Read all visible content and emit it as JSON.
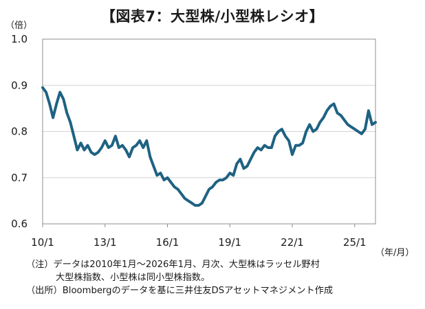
{
  "chart_data": {
    "type": "line",
    "title": "【図表7：大型株/小型株レシオ】",
    "ylabel": "（倍）",
    "xlabel": "（年/月）",
    "ylim": [
      0.6,
      1.0
    ],
    "yticks": [
      "1.0",
      "0.9",
      "0.8",
      "0.7",
      "0.6"
    ],
    "ytick_values": [
      1.0,
      0.9,
      0.8,
      0.7,
      0.6
    ],
    "xticks": [
      "10/1",
      "13/1",
      "16/1",
      "19/1",
      "22/1",
      "25/1"
    ],
    "xtick_values": [
      0,
      36,
      72,
      108,
      144,
      180
    ],
    "x_range": [
      0,
      192
    ],
    "grid": true,
    "line_color": "#1f6282",
    "series": [
      {
        "x": [
          0,
          2,
          4,
          6,
          8,
          10,
          12,
          14,
          16,
          18,
          20,
          22,
          24,
          26,
          28,
          30,
          32,
          34,
          36,
          38,
          40,
          42,
          44,
          46,
          48,
          50,
          52,
          54,
          56,
          58,
          60,
          62,
          64,
          66,
          68,
          70,
          72,
          74,
          76,
          78,
          80,
          82,
          84,
          86,
          88,
          90,
          92,
          94,
          96,
          98,
          100,
          102,
          104,
          106,
          108,
          110,
          112,
          114,
          116,
          118,
          120,
          122,
          124,
          126,
          128,
          130,
          132,
          134,
          136,
          138,
          140,
          142,
          144,
          146,
          148,
          150,
          152,
          154,
          156,
          158,
          160,
          162,
          164,
          166,
          168,
          170,
          172,
          174,
          176,
          178,
          180,
          182,
          184,
          186,
          188,
          190,
          192
        ],
        "values": [
          0.895,
          0.885,
          0.86,
          0.83,
          0.86,
          0.885,
          0.87,
          0.84,
          0.82,
          0.79,
          0.76,
          0.775,
          0.76,
          0.77,
          0.755,
          0.75,
          0.755,
          0.765,
          0.78,
          0.765,
          0.77,
          0.79,
          0.765,
          0.77,
          0.76,
          0.745,
          0.765,
          0.77,
          0.78,
          0.765,
          0.78,
          0.745,
          0.725,
          0.705,
          0.71,
          0.695,
          0.7,
          0.69,
          0.68,
          0.675,
          0.665,
          0.655,
          0.65,
          0.645,
          0.64,
          0.64,
          0.645,
          0.66,
          0.675,
          0.68,
          0.69,
          0.695,
          0.695,
          0.7,
          0.71,
          0.705,
          0.73,
          0.74,
          0.72,
          0.725,
          0.74,
          0.755,
          0.765,
          0.76,
          0.77,
          0.765,
          0.765,
          0.79,
          0.8,
          0.805,
          0.79,
          0.78,
          0.75,
          0.77,
          0.77,
          0.775,
          0.8,
          0.815,
          0.8,
          0.805,
          0.82,
          0.83,
          0.845,
          0.855,
          0.86,
          0.84,
          0.835,
          0.825,
          0.815,
          0.81,
          0.805,
          0.8,
          0.795,
          0.805,
          0.845,
          0.815,
          0.82
        ]
      }
    ]
  },
  "notes": {
    "line1": "（注）データは2010年1月～2026年1月、月次、大型株はラッセル野村",
    "line2": "大型株指数、小型株は同小型株指数。",
    "line3": "（出所）Bloombergのデータを基に三井住友DSアセットマネジメント作成"
  }
}
